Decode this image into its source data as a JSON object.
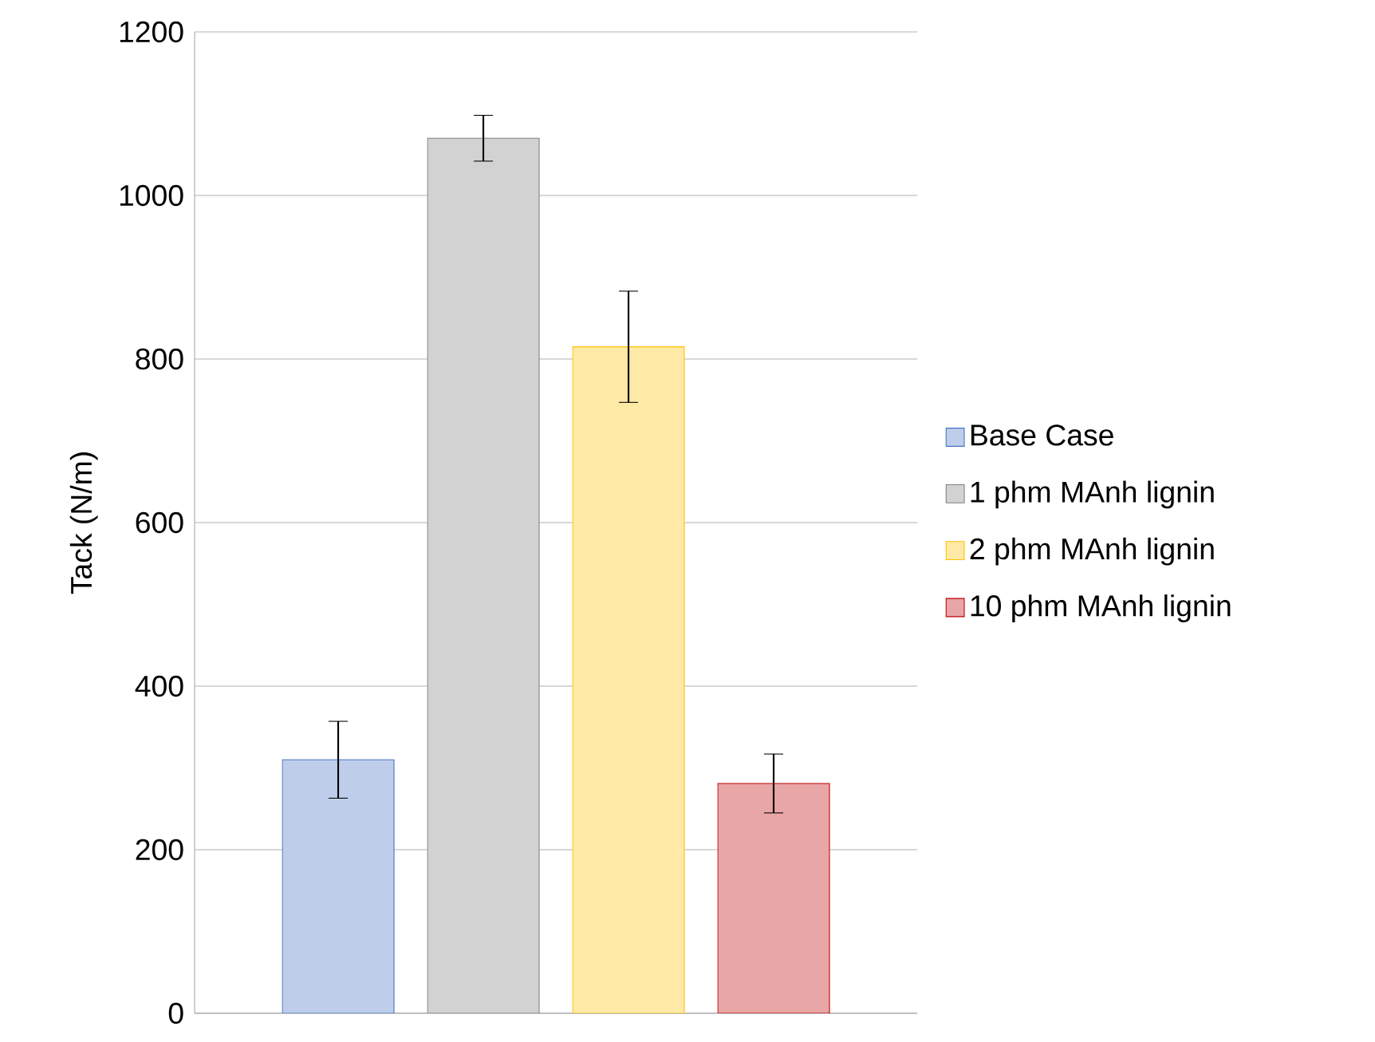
{
  "chart_data": {
    "type": "bar",
    "ylabel": "Tack (N/m)",
    "categories": [
      null
    ],
    "series": [
      {
        "name": "Base Case",
        "color": "#4472c4",
        "values": [
          310
        ],
        "errors": [
          47
        ]
      },
      {
        "name": "1 phm MAnh  lignin",
        "color": "#7f7f7f",
        "values": [
          1070
        ],
        "errors": [
          28
        ]
      },
      {
        "name": "2 phm MAnh  lignin",
        "color": "#ffc000",
        "values": [
          815
        ],
        "errors": [
          68
        ]
      },
      {
        "name": "10 phm MAnh lignin",
        "color": "#c00000",
        "values": [
          281
        ],
        "errors": [
          36
        ]
      }
    ],
    "ylim": [
      0,
      1200
    ],
    "yticks": [
      0,
      200,
      400,
      600,
      800,
      1000,
      1200
    ],
    "grid": "y",
    "legend": "right"
  }
}
